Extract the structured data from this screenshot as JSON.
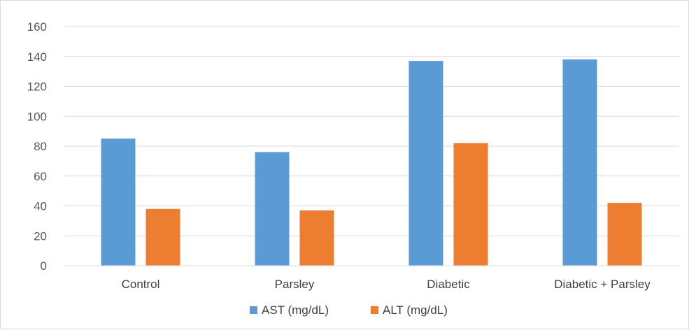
{
  "chart_data": {
    "type": "bar",
    "title": "",
    "xlabel": "",
    "ylabel": "",
    "categories": [
      "Control",
      "Parsley",
      "Diabetic",
      "Diabetic + Parsley"
    ],
    "series": [
      {
        "name": "AST (mg/dL)",
        "values": [
          85,
          76,
          137,
          138
        ],
        "color": "#5b9bd5"
      },
      {
        "name": "ALT (mg/dL)",
        "values": [
          38,
          37,
          82,
          42
        ],
        "color": "#ed7d31"
      }
    ],
    "ylim": [
      0,
      160
    ],
    "yticks": [
      0,
      20,
      40,
      60,
      80,
      100,
      120,
      140,
      160
    ],
    "grid": true,
    "legend_position": "bottom"
  }
}
